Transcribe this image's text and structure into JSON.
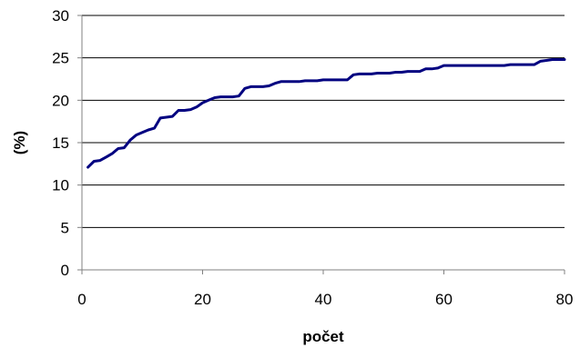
{
  "chart_data": {
    "type": "line",
    "title": "",
    "xlabel": "počet",
    "ylabel": "(%)",
    "xlim": [
      0,
      80
    ],
    "ylim": [
      0,
      30
    ],
    "xticks": [
      0,
      20,
      40,
      60,
      80
    ],
    "yticks": [
      0,
      5,
      10,
      15,
      20,
      25,
      30
    ],
    "grid": "horizontal",
    "legend": "none",
    "series": [
      {
        "color": "#000080",
        "x": [
          1,
          2,
          3,
          4,
          5,
          6,
          7,
          8,
          9,
          10,
          11,
          12,
          13,
          14,
          15,
          16,
          17,
          18,
          19,
          20,
          21,
          22,
          23,
          24,
          25,
          26,
          27,
          28,
          29,
          30,
          31,
          32,
          33,
          34,
          35,
          36,
          37,
          38,
          39,
          40,
          41,
          42,
          43,
          44,
          45,
          46,
          47,
          48,
          49,
          50,
          51,
          52,
          53,
          54,
          55,
          56,
          57,
          58,
          59,
          60,
          61,
          62,
          63,
          64,
          65,
          66,
          67,
          68,
          69,
          70,
          71,
          72,
          73,
          74,
          75,
          76,
          77,
          78,
          79,
          80
        ],
        "values": [
          12.1,
          12.8,
          12.9,
          13.3,
          13.7,
          14.3,
          14.4,
          15.3,
          15.9,
          16.2,
          16.5,
          16.7,
          17.9,
          18.0,
          18.1,
          18.8,
          18.8,
          18.9,
          19.2,
          19.7,
          20.0,
          20.3,
          20.4,
          20.4,
          20.4,
          20.5,
          21.4,
          21.6,
          21.6,
          21.6,
          21.7,
          22.0,
          22.2,
          22.2,
          22.2,
          22.2,
          22.3,
          22.3,
          22.3,
          22.4,
          22.4,
          22.4,
          22.4,
          22.4,
          23.0,
          23.1,
          23.1,
          23.1,
          23.2,
          23.2,
          23.2,
          23.3,
          23.3,
          23.4,
          23.4,
          23.4,
          23.7,
          23.7,
          23.8,
          24.1,
          24.1,
          24.1,
          24.1,
          24.1,
          24.1,
          24.1,
          24.1,
          24.1,
          24.1,
          24.1,
          24.2,
          24.2,
          24.2,
          24.2,
          24.2,
          24.6,
          24.7,
          24.8,
          24.8,
          24.8
        ]
      }
    ]
  }
}
